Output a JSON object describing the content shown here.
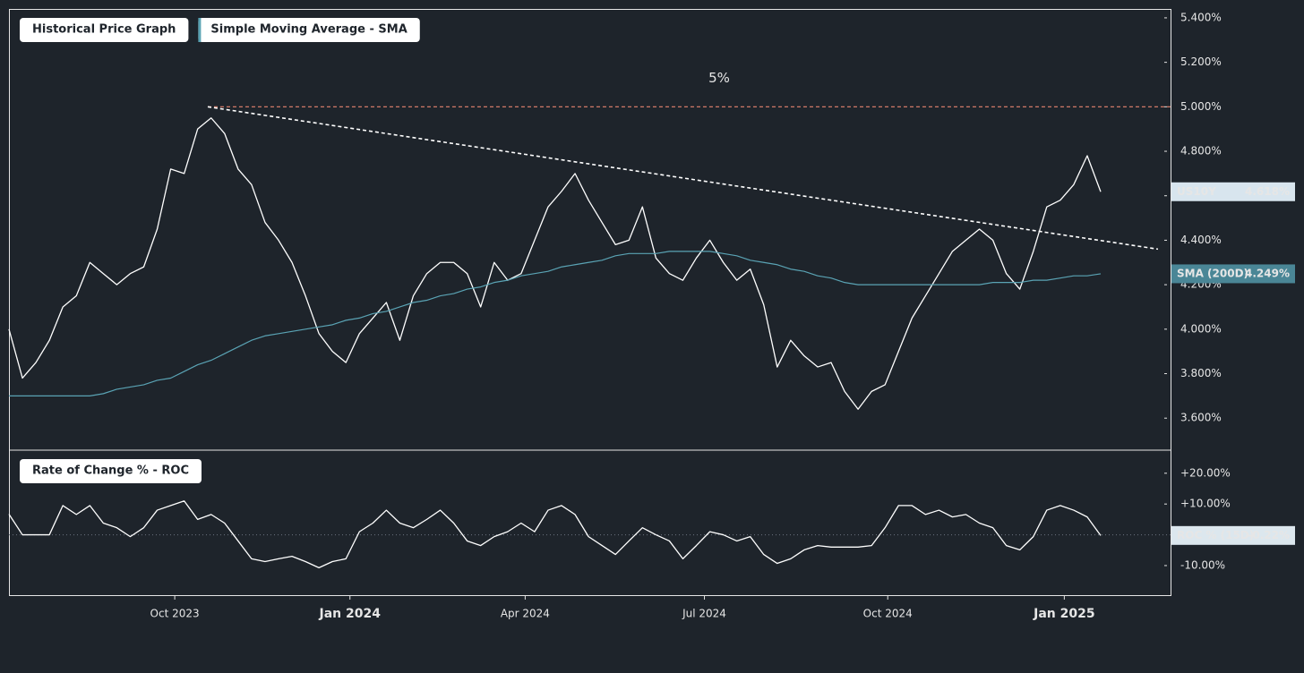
{
  "chart_data": [
    {
      "type": "line",
      "tabs": [
        "Historical Price Graph",
        "Simple Moving Average - SMA"
      ],
      "xlim": [
        0,
        86.25
      ],
      "ylim": [
        3.46,
        5.44
      ],
      "yticks": [
        {
          "value": 3.6,
          "label": "3.600%"
        },
        {
          "value": 3.8,
          "label": "3.800%"
        },
        {
          "value": 4.0,
          "label": "4.000%"
        },
        {
          "value": 4.2,
          "label": "4.200%"
        },
        {
          "value": 4.4,
          "label": "4.400%"
        },
        {
          "value": 4.6,
          "label": "4.600%"
        },
        {
          "value": 4.8,
          "label": "4.800%"
        },
        {
          "value": 5.0,
          "label": "5.000%"
        },
        {
          "value": 5.2,
          "label": "5.200%"
        },
        {
          "value": 5.4,
          "label": "5.400%"
        }
      ],
      "reference_line": {
        "value": 5,
        "label": "5%",
        "color": "#e8836f"
      },
      "trendline": {
        "x": [
          14.75,
          85.25
        ],
        "y": [
          5.0,
          4.36
        ],
        "color": "#ffffff"
      },
      "series": [
        {
          "name": "US10Y",
          "color": "#ffffff",
          "box_color": "#d8e5ee",
          "box_text": "#1e242b",
          "end_value": 4.618,
          "end_label": "4.618%",
          "values": [
            4.0,
            3.78,
            3.85,
            3.95,
            4.1,
            4.15,
            4.3,
            4.25,
            4.2,
            4.25,
            4.28,
            4.45,
            4.72,
            4.7,
            4.9,
            4.95,
            4.88,
            4.72,
            4.65,
            4.48,
            4.4,
            4.3,
            4.15,
            3.98,
            3.9,
            3.85,
            3.98,
            4.05,
            4.12,
            3.95,
            4.15,
            4.25,
            4.3,
            4.3,
            4.25,
            4.1,
            4.3,
            4.22,
            4.25,
            4.4,
            4.55,
            4.62,
            4.7,
            4.58,
            4.48,
            4.38,
            4.4,
            4.55,
            4.32,
            4.25,
            4.22,
            4.32,
            4.4,
            4.3,
            4.22,
            4.27,
            4.11,
            3.83,
            3.95,
            3.88,
            3.83,
            3.85,
            3.72,
            3.64,
            3.72,
            3.75,
            3.9,
            4.05,
            4.15,
            4.25,
            4.35,
            4.4,
            4.45,
            4.4,
            4.25,
            4.18,
            4.35,
            4.55,
            4.58,
            4.65,
            4.78,
            4.618
          ]
        },
        {
          "name": "SMA (200D)",
          "color": "#5aa3b4",
          "box_color": "#4a8696",
          "box_text": "#ffffff",
          "end_value": 4.249,
          "end_label": "4.249%",
          "values": [
            3.7,
            3.7,
            3.7,
            3.7,
            3.7,
            3.7,
            3.7,
            3.71,
            3.73,
            3.74,
            3.75,
            3.77,
            3.78,
            3.81,
            3.84,
            3.86,
            3.89,
            3.92,
            3.95,
            3.97,
            3.98,
            3.99,
            4.0,
            4.01,
            4.02,
            4.04,
            4.05,
            4.07,
            4.08,
            4.1,
            4.12,
            4.13,
            4.15,
            4.16,
            4.18,
            4.19,
            4.21,
            4.22,
            4.24,
            4.25,
            4.26,
            4.28,
            4.29,
            4.3,
            4.31,
            4.33,
            4.34,
            4.34,
            4.34,
            4.35,
            4.35,
            4.35,
            4.35,
            4.34,
            4.33,
            4.31,
            4.3,
            4.29,
            4.27,
            4.26,
            4.24,
            4.23,
            4.21,
            4.2,
            4.2,
            4.2,
            4.2,
            4.2,
            4.2,
            4.2,
            4.2,
            4.2,
            4.2,
            4.21,
            4.21,
            4.21,
            4.22,
            4.22,
            4.23,
            4.24,
            4.24,
            4.249
          ]
        }
      ]
    },
    {
      "type": "line",
      "tabs": [
        "Rate of Change % - ROC"
      ],
      "xlim": [
        0,
        86.25
      ],
      "ylim": [
        -19.9,
        27.5
      ],
      "yticks": [
        {
          "value": -10,
          "label": "-10.00%"
        },
        {
          "value": 10,
          "label": "+10.00%"
        },
        {
          "value": 20,
          "label": "+20.00%"
        }
      ],
      "zero_line": 0,
      "xticks": [
        {
          "value": 12.3,
          "label": "Oct 2023"
        },
        {
          "value": 25.3,
          "label": "Jan 2024"
        },
        {
          "value": 38.3,
          "label": "Apr 2024"
        },
        {
          "value": 51.6,
          "label": "Jul 2024"
        },
        {
          "value": 65.2,
          "label": "Oct 2024"
        },
        {
          "value": 78.3,
          "label": "Jan 2025"
        }
      ],
      "series": [
        {
          "name": "ROC % (15D)",
          "color": "#ffffff",
          "box_color": "#dce7ee",
          "box_text": "#1e242b",
          "end_value": -0.22,
          "end_label": "-0.22%",
          "values": [
            6.7,
            0,
            0,
            0,
            9.5,
            6.6,
            9.5,
            3.8,
            2.3,
            -0.6,
            2.3,
            8,
            9.5,
            11,
            5,
            6.6,
            3.8,
            -2,
            -7.8,
            -8.7,
            -7.8,
            -7,
            -8.7,
            -10.7,
            -8.7,
            -7.8,
            1,
            3.8,
            8,
            3.8,
            2.3,
            5,
            8,
            3.8,
            -2,
            -3.5,
            -0.6,
            1,
            3.8,
            1,
            8,
            9.5,
            6.6,
            -0.6,
            -3.5,
            -6.4,
            -2,
            2.3,
            0,
            -2,
            -7.8,
            -3.5,
            1,
            0,
            -2,
            -0.6,
            -6.4,
            -9.3,
            -7.8,
            -4.9,
            -3.5,
            -4,
            -4,
            -4,
            -3.5,
            2.3,
            9.5,
            9.5,
            6.6,
            8,
            5.8,
            6.6,
            3.8,
            2.3,
            -3.5,
            -4.9,
            -0.6,
            8,
            9.5,
            8,
            5.8,
            -0.22
          ]
        }
      ]
    }
  ]
}
